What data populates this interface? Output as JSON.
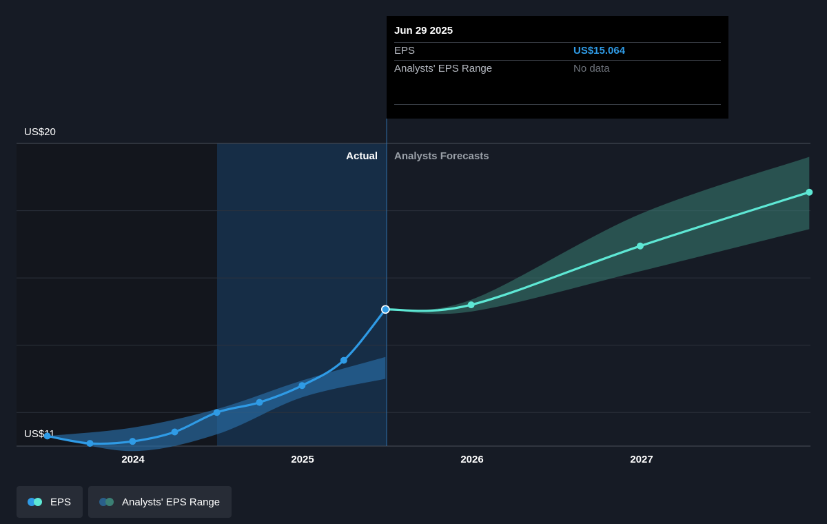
{
  "tooltip": {
    "date": "Jun 29 2025",
    "rows": [
      {
        "label": "EPS",
        "value": "US$15.064"
      },
      {
        "label": "Analysts' EPS Range",
        "value": "No data"
      }
    ]
  },
  "legend": {
    "items": [
      {
        "label": "EPS",
        "icon": "eps-dots-icon"
      },
      {
        "label": "Analysts' EPS Range",
        "icon": "range-dots-icon"
      }
    ]
  },
  "colors": {
    "actual_line": "#2f9be6",
    "forecast_line": "#5ee8d5",
    "actual_band": "#2a6fa8",
    "forecast_band": "#3b7f74",
    "background": "#161b25"
  },
  "chart_data": {
    "type": "line",
    "y_axis_labels": [
      "US$20",
      "US$11"
    ],
    "ylim": [
      11,
      20
    ],
    "x_ticks": [
      "2024",
      "2025",
      "2026",
      "2027"
    ],
    "divider_labels": {
      "left": "Actual",
      "right": "Analysts Forecasts"
    },
    "series": [
      {
        "points": [
          {
            "x": "2023-06-30",
            "y": 11.3
          },
          {
            "x": "2023-09-30",
            "y": 11.08
          },
          {
            "x": "2023-12-31",
            "y": 11.14
          },
          {
            "x": "2024-03-31",
            "y": 11.42
          },
          {
            "x": "2024-06-30",
            "y": 12.0
          },
          {
            "x": "2024-09-30",
            "y": 12.3
          },
          {
            "x": "2024-12-31",
            "y": 12.8
          },
          {
            "x": "2025-03-31",
            "y": 13.55
          },
          {
            "x": "2025-06-29",
            "y": 15.064
          }
        ]
      },
      {
        "points": [
          {
            "x": "2025-06-29",
            "y": 15.064
          },
          {
            "x": "2025-12-31",
            "y": 15.2
          },
          {
            "x": "2026-12-31",
            "y": 16.95
          },
          {
            "x": "2027-12-31",
            "y": 18.55
          }
        ]
      }
    ],
    "range_bands": [
      {
        "points": [
          {
            "x": "2023-06-30",
            "low": 11.3,
            "high": 11.3
          },
          {
            "x": "2023-12-31",
            "low": 10.85,
            "high": 11.55
          },
          {
            "x": "2024-06-30",
            "low": 11.35,
            "high": 12.1
          },
          {
            "x": "2024-12-31",
            "low": 12.45,
            "high": 12.95
          },
          {
            "x": "2025-06-29",
            "low": 13.0,
            "high": 13.65
          }
        ]
      },
      {
        "points": [
          {
            "x": "2025-06-29",
            "low": 15.064,
            "high": 15.064
          },
          {
            "x": "2025-12-31",
            "low": 15.0,
            "high": 15.35
          },
          {
            "x": "2026-12-31",
            "low": 16.2,
            "high": 17.9
          },
          {
            "x": "2027-12-31",
            "low": 17.45,
            "high": 19.6
          }
        ]
      }
    ]
  }
}
